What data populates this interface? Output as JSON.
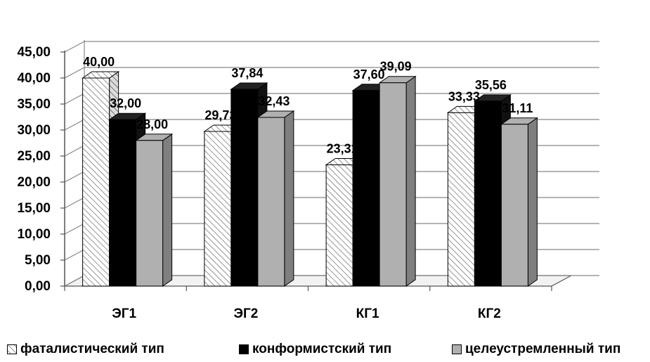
{
  "chart_data": {
    "type": "bar",
    "categories": [
      "ЭГ1",
      "ЭГ2",
      "КГ1",
      "КГ2"
    ],
    "series": [
      {
        "name": "фаталистический тип",
        "values": [
          40.0,
          29.73,
          23.31,
          33.33
        ],
        "labels": [
          "40,00",
          "29,73",
          "23,31",
          "33,33"
        ],
        "pattern": "hatched"
      },
      {
        "name": "конформистский тип",
        "values": [
          32.0,
          37.84,
          37.6,
          35.56
        ],
        "labels": [
          "32,00",
          "37,84",
          "37,60",
          "35,56"
        ],
        "color": "#000000"
      },
      {
        "name": "целеустремленный тип",
        "values": [
          28.0,
          32.43,
          39.09,
          31.11
        ],
        "labels": [
          "28,00",
          "32,43",
          "39,09",
          "31,11"
        ],
        "color": "#b0b0b0"
      }
    ],
    "yticks": [
      "0,00",
      "5,00",
      "10,00",
      "15,00",
      "20,00",
      "25,00",
      "30,00",
      "35,00",
      "40,00",
      "45,00"
    ],
    "ylim": [
      0,
      45
    ],
    "grid": true,
    "legend_position": "bottom",
    "three_d": true
  }
}
